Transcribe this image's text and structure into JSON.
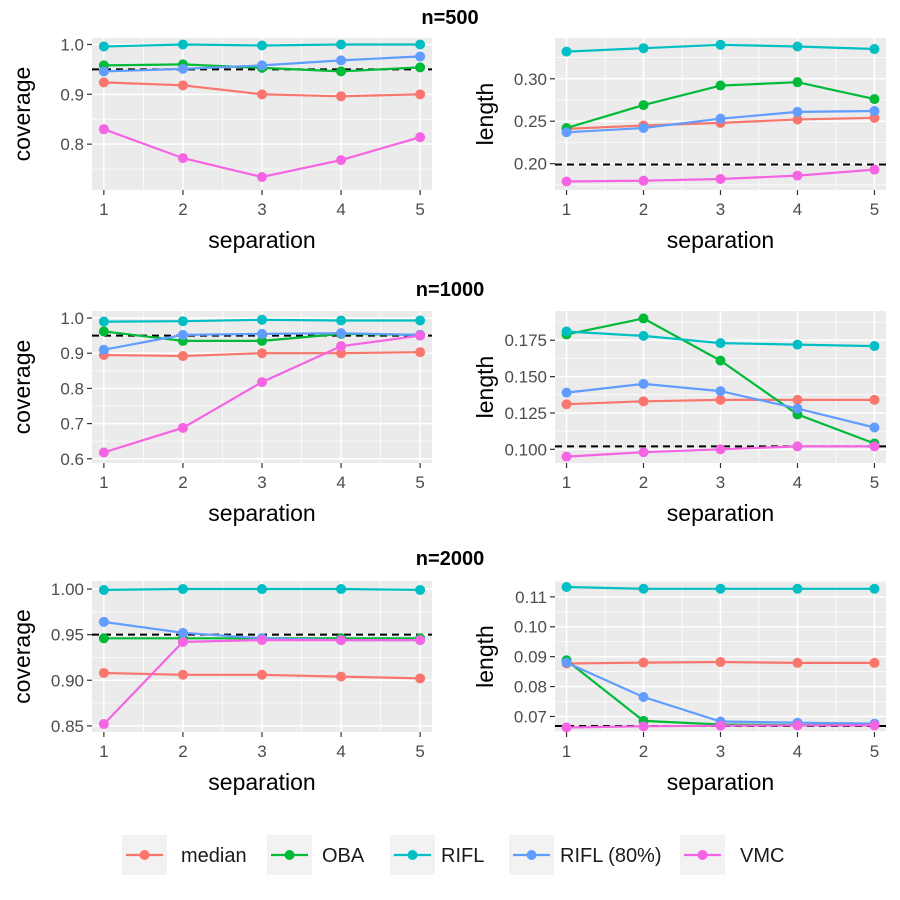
{
  "colors": {
    "median": "#F8766D",
    "OBA": "#00BA38",
    "RIFL": "#00BFC4",
    "RIFL (80%)": "#619CFF",
    "VMC": "#F564E3",
    "panel_bg": "#EBEBEB",
    "grid": "#FFFFFF",
    "reference": "#000000"
  },
  "legend": {
    "entries": [
      "median",
      "OBA",
      "RIFL",
      "RIFL (80%)",
      "VMC"
    ]
  },
  "chart_data": [
    {
      "type": "line",
      "group_title": "n=500",
      "xlabel": "separation",
      "ylabel": "coverage",
      "x": [
        1,
        2,
        3,
        4,
        5
      ],
      "xlim": [
        0.85,
        5.15
      ],
      "ylim": [
        0.708,
        1.013
      ],
      "yticks": [
        0.8,
        0.9,
        1.0
      ],
      "ytick_labels": [
        "0.8",
        "0.9",
        "1.0"
      ],
      "reference_line": 0.95,
      "series": [
        {
          "name": "median",
          "values": [
            0.924,
            0.918,
            0.9,
            0.896,
            0.9
          ]
        },
        {
          "name": "OBA",
          "values": [
            0.958,
            0.96,
            0.953,
            0.946,
            0.954
          ]
        },
        {
          "name": "RIFL",
          "values": [
            0.996,
            1.0,
            0.998,
            1.0,
            1.0
          ]
        },
        {
          "name": "RIFL (80%)",
          "values": [
            0.946,
            0.951,
            0.958,
            0.968,
            0.976
          ]
        },
        {
          "name": "VMC",
          "values": [
            0.83,
            0.772,
            0.734,
            0.768,
            0.814
          ]
        }
      ]
    },
    {
      "type": "line",
      "group_title": "n=500",
      "xlabel": "separation",
      "ylabel": "length",
      "x": [
        1,
        2,
        3,
        4,
        5
      ],
      "xlim": [
        0.85,
        5.15
      ],
      "ylim": [
        0.169,
        0.348
      ],
      "yticks": [
        0.2,
        0.25,
        0.3
      ],
      "ytick_labels": [
        "0.20",
        "0.25",
        "0.30"
      ],
      "reference_line": 0.199,
      "series": [
        {
          "name": "median",
          "values": [
            0.241,
            0.245,
            0.248,
            0.252,
            0.254
          ]
        },
        {
          "name": "OBA",
          "values": [
            0.242,
            0.269,
            0.292,
            0.296,
            0.276
          ]
        },
        {
          "name": "RIFL",
          "values": [
            0.332,
            0.336,
            0.34,
            0.338,
            0.335
          ]
        },
        {
          "name": "RIFL (80%)",
          "values": [
            0.237,
            0.242,
            0.253,
            0.261,
            0.262
          ]
        },
        {
          "name": "VMC",
          "values": [
            0.179,
            0.18,
            0.182,
            0.186,
            0.193
          ]
        }
      ]
    },
    {
      "type": "line",
      "group_title": "n=1000",
      "xlabel": "separation",
      "ylabel": "coverage",
      "x": [
        1,
        2,
        3,
        4,
        5
      ],
      "xlim": [
        0.85,
        5.15
      ],
      "ylim": [
        0.588,
        1.02
      ],
      "yticks": [
        0.6,
        0.7,
        0.8,
        0.9,
        1.0
      ],
      "ytick_labels": [
        "0.6",
        "0.7",
        "0.8",
        "0.9",
        "1.0"
      ],
      "reference_line": 0.95,
      "series": [
        {
          "name": "median",
          "values": [
            0.895,
            0.892,
            0.9,
            0.9,
            0.903
          ]
        },
        {
          "name": "OBA",
          "values": [
            0.962,
            0.935,
            0.935,
            0.955,
            0.952
          ]
        },
        {
          "name": "RIFL",
          "values": [
            0.99,
            0.991,
            0.995,
            0.993,
            0.993
          ]
        },
        {
          "name": "RIFL (80%)",
          "values": [
            0.91,
            0.952,
            0.955,
            0.957,
            0.952
          ]
        },
        {
          "name": "VMC",
          "values": [
            0.618,
            0.688,
            0.818,
            0.92,
            0.95
          ]
        }
      ]
    },
    {
      "type": "line",
      "group_title": "n=1000",
      "xlabel": "separation",
      "ylabel": "length",
      "x": [
        1,
        2,
        3,
        4,
        5
      ],
      "xlim": [
        0.85,
        5.15
      ],
      "ylim": [
        0.0906,
        0.1951
      ],
      "yticks": [
        0.1,
        0.125,
        0.15,
        0.175
      ],
      "ytick_labels": [
        "0.100",
        "0.125",
        "0.150",
        "0.175"
      ],
      "reference_line": 0.102,
      "series": [
        {
          "name": "median",
          "values": [
            0.131,
            0.133,
            0.134,
            0.134,
            0.134
          ]
        },
        {
          "name": "OBA",
          "values": [
            0.179,
            0.19,
            0.161,
            0.124,
            0.104
          ]
        },
        {
          "name": "RIFL",
          "values": [
            0.181,
            0.178,
            0.173,
            0.172,
            0.171
          ]
        },
        {
          "name": "RIFL (80%)",
          "values": [
            0.139,
            0.145,
            0.14,
            0.128,
            0.115
          ]
        },
        {
          "name": "VMC",
          "values": [
            0.095,
            0.098,
            0.1,
            0.102,
            0.102
          ]
        }
      ]
    },
    {
      "type": "line",
      "group_title": "n=2000",
      "xlabel": "separation",
      "ylabel": "coverage",
      "x": [
        1,
        2,
        3,
        4,
        5
      ],
      "xlim": [
        0.85,
        5.15
      ],
      "ylim": [
        0.8433,
        1.0088
      ],
      "yticks": [
        0.85,
        0.9,
        0.95,
        1.0
      ],
      "ytick_labels": [
        "0.85",
        "0.90",
        "0.95",
        "1.00"
      ],
      "reference_line": 0.95,
      "series": [
        {
          "name": "median",
          "values": [
            0.908,
            0.906,
            0.906,
            0.904,
            0.902
          ]
        },
        {
          "name": "OBA",
          "values": [
            0.946,
            0.946,
            0.946,
            0.946,
            0.946
          ]
        },
        {
          "name": "RIFL",
          "values": [
            0.999,
            1.0,
            1.0,
            1.0,
            0.999
          ]
        },
        {
          "name": "RIFL (80%)",
          "values": [
            0.964,
            0.952,
            0.946,
            0.944,
            0.944
          ]
        },
        {
          "name": "VMC",
          "values": [
            0.852,
            0.942,
            0.944,
            0.944,
            0.944
          ]
        }
      ]
    },
    {
      "type": "line",
      "group_title": "n=2000",
      "xlabel": "separation",
      "ylabel": "length",
      "x": [
        1,
        2,
        3,
        4,
        5
      ],
      "xlim": [
        0.85,
        5.15
      ],
      "ylim": [
        0.0648,
        0.1153
      ],
      "yticks": [
        0.07,
        0.08,
        0.09,
        0.1,
        0.11
      ],
      "ytick_labels": [
        "0.07",
        "0.08",
        "0.09",
        "0.10",
        "0.11"
      ],
      "reference_line": 0.0668,
      "series": [
        {
          "name": "median",
          "values": [
            0.0877,
            0.088,
            0.0882,
            0.0879,
            0.0879
          ]
        },
        {
          "name": "OBA",
          "values": [
            0.0888,
            0.0685,
            0.0673,
            0.0671,
            0.0671
          ]
        },
        {
          "name": "RIFL",
          "values": [
            0.1133,
            0.1127,
            0.1127,
            0.1127,
            0.1127
          ]
        },
        {
          "name": "RIFL (80%)",
          "values": [
            0.088,
            0.0765,
            0.0683,
            0.0679,
            0.0676
          ]
        },
        {
          "name": "VMC",
          "values": [
            0.0663,
            0.0667,
            0.0669,
            0.067,
            0.067
          ]
        }
      ]
    }
  ]
}
